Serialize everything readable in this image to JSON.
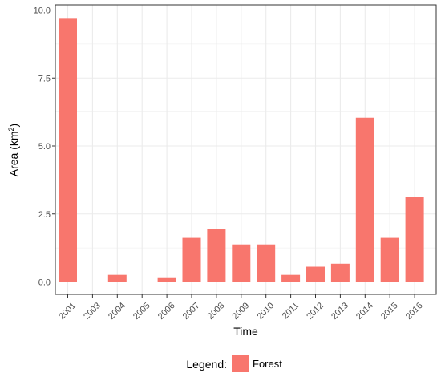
{
  "chart_data": {
    "type": "bar",
    "categories": [
      "2001",
      "2003",
      "2004",
      "2005",
      "2006",
      "2007",
      "2008",
      "2009",
      "2010",
      "2011",
      "2012",
      "2013",
      "2014",
      "2015",
      "2016"
    ],
    "series": [
      {
        "name": "Forest",
        "color": "#F8766D",
        "values": [
          9.68,
          0,
          0.26,
          0,
          0.17,
          1.62,
          1.94,
          1.38,
          1.38,
          0.26,
          0.56,
          0.67,
          6.04,
          1.62,
          3.12
        ]
      }
    ],
    "xlabel": "Time",
    "ylabel": "Area (km",
    "ylabel_superscript": "2",
    "ylabel_suffix": ")",
    "ylim": [
      0,
      10
    ],
    "yticks": [
      "0.0",
      "2.5",
      "5.0",
      "7.5",
      "10.0"
    ],
    "ytick_values": [
      0,
      2.5,
      5,
      7.5,
      10
    ],
    "grid": true,
    "legend": {
      "title": "Legend:",
      "position": "bottom",
      "entries": [
        "Forest"
      ]
    },
    "colors": {
      "panel_border": "#333333",
      "grid": "#ebebeb",
      "bar": "#F8766D"
    }
  }
}
